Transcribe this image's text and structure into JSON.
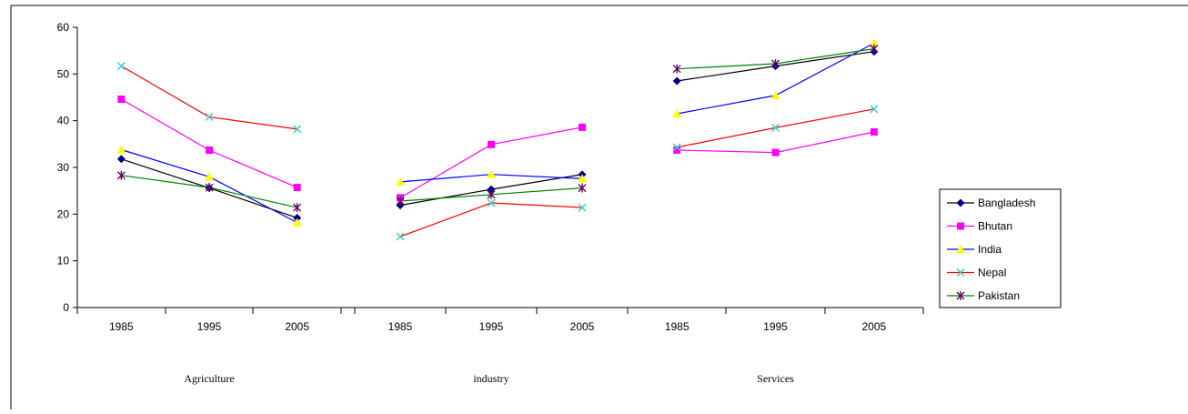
{
  "chart_data": {
    "type": "line",
    "title": "",
    "xlabel": "",
    "ylabel": "",
    "ylim": [
      0,
      60
    ],
    "yticks": [
      0,
      10,
      20,
      30,
      40,
      50,
      60
    ],
    "grid": false,
    "legend_position": "right",
    "groups": [
      {
        "label": "Agriculture",
        "years": [
          "1985",
          "1995",
          "2005"
        ]
      },
      {
        "label": "industry",
        "years": [
          "1985",
          "1995",
          "2005"
        ]
      },
      {
        "label": "Services",
        "years": [
          "1985",
          "1995",
          "2005"
        ]
      }
    ],
    "series": [
      {
        "name": "Bangladesh",
        "color": "#000000",
        "marker_color": "#000080",
        "marker": "diamond",
        "segments": [
          [
            31.8,
            25.6,
            19.2
          ],
          [
            21.9,
            25.3,
            28.5
          ],
          [
            48.5,
            51.7,
            54.8
          ]
        ]
      },
      {
        "name": "Bhutan",
        "color": "#FF00FF",
        "marker_color": "#FF00FF",
        "marker": "square",
        "segments": [
          [
            44.6,
            33.7,
            25.7
          ],
          [
            23.5,
            34.9,
            38.6
          ],
          [
            33.7,
            33.2,
            37.6
          ]
        ]
      },
      {
        "name": "India",
        "color": "#0000FF",
        "marker_color": "#FFFF00",
        "marker": "triangle",
        "segments": [
          [
            33.8,
            28.0,
            18.2
          ],
          [
            26.9,
            28.5,
            27.6
          ],
          [
            41.5,
            45.4,
            56.6
          ]
        ]
      },
      {
        "name": "Nepal",
        "color": "#FF0000",
        "marker_color": "#33CCCC",
        "marker": "x",
        "segments": [
          [
            51.7,
            40.8,
            38.2
          ],
          [
            15.2,
            22.4,
            21.4
          ],
          [
            34.3,
            38.5,
            42.5
          ]
        ]
      },
      {
        "name": "Pakistan",
        "color": "#008000",
        "marker_color": "#660066",
        "marker": "star",
        "segments": [
          [
            28.3,
            25.7,
            21.4
          ],
          [
            22.8,
            24.2,
            25.6
          ],
          [
            51.1,
            52.2,
            55.4
          ]
        ]
      }
    ]
  }
}
